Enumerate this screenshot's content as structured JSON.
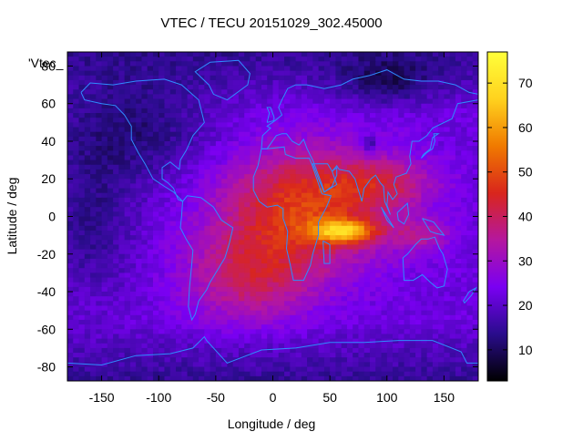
{
  "chart_data": {
    "type": "heatmap",
    "title": "VTEC / TECU 20151029_302.45000",
    "xlabel": "Longitude / deg",
    "ylabel": "Latitude / deg",
    "overlay_label": "'Vtec_",
    "xlim": [
      -180,
      180
    ],
    "ylim": [
      -87.5,
      87.5
    ],
    "xticks": [
      -150,
      -100,
      -50,
      0,
      50,
      100,
      150
    ],
    "yticks": [
      -80,
      -60,
      -40,
      -20,
      0,
      20,
      40,
      60,
      80
    ],
    "colorbar": {
      "range": [
        3,
        77
      ],
      "ticks": [
        10,
        20,
        30,
        40,
        50,
        60,
        70
      ],
      "colormap": [
        "#000000",
        "#2a0c8c",
        "#7a00f2",
        "#b5179e",
        "#d9261c",
        "#f07a00",
        "#ffd21e",
        "#ffff3a"
      ]
    },
    "grid": {
      "lon_step": 5,
      "lat_step": 2.5,
      "description": "ionospheric VTEC map: equatorial anomaly maximum ~77 TECU near lon 50-80, lat -5 to -15; broad enhanced region 40-60 TECU over Atlantic/Africa/Indian Ocean; polar and night-side minimum ~3-10 TECU"
    }
  }
}
